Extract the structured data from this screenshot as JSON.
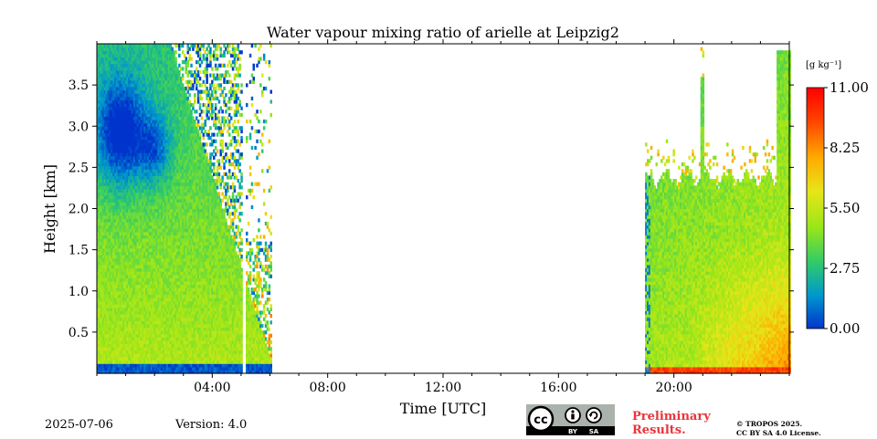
{
  "chart_data": {
    "type": "heatmap",
    "title": "Water vapour mixing ratio of arielle at Leipzig2",
    "xlabel": "Time [UTC]",
    "ylabel": "Height [km]",
    "xlim": [
      0,
      24
    ],
    "ylim": [
      0,
      4.0
    ],
    "x_ticks": [
      4,
      8,
      12,
      16,
      20
    ],
    "x_tick_labels": [
      "04:00",
      "08:00",
      "12:00",
      "16:00",
      "20:00"
    ],
    "y_ticks": [
      0.5,
      1.0,
      1.5,
      2.0,
      2.5,
      3.0,
      3.5
    ],
    "y_tick_labels": [
      "0.5",
      "1.0",
      "1.5",
      "2.0",
      "2.5",
      "3.0",
      "3.5"
    ],
    "colorbar": {
      "label": "[g kg⁻¹]",
      "range": [
        0,
        11
      ],
      "ticks": [
        0,
        2.75,
        5.5,
        8.25,
        11
      ],
      "tick_labels": [
        "0.00",
        "2.75",
        "5.50",
        "8.25",
        "11.00"
      ],
      "colormap": [
        "#0033cc",
        "#0099cc",
        "#33cc66",
        "#99e619",
        "#e6e619",
        "#ffaa00",
        "#ff4400",
        "#ff0000"
      ]
    },
    "data_segments": [
      {
        "start": 0.0,
        "end": 6.0,
        "top_km": 4.0,
        "description_values": "high-level dry core ~1 g/kg near 2.5-3.5 km, moist ~5-6 g/kg below, noisy above ~2.5 km after 02:30"
      },
      {
        "start": 19.0,
        "end": 24.0,
        "top_km": 2.4,
        "description_values": "boundary layer ~5-8 g/kg, max ~8 g/kg near surface after 21:00"
      }
    ]
  },
  "footer": {
    "date": "2025-07-06",
    "version": "Version: 4.0",
    "preliminary_line1": "Preliminary",
    "preliminary_line2": "Results.",
    "copyright_line1": "© TROPOS 2025.",
    "copyright_line2": "CC BY SA 4.0 License.",
    "cc_text": "cc",
    "cc_by": "BY",
    "cc_sa": "SA"
  }
}
